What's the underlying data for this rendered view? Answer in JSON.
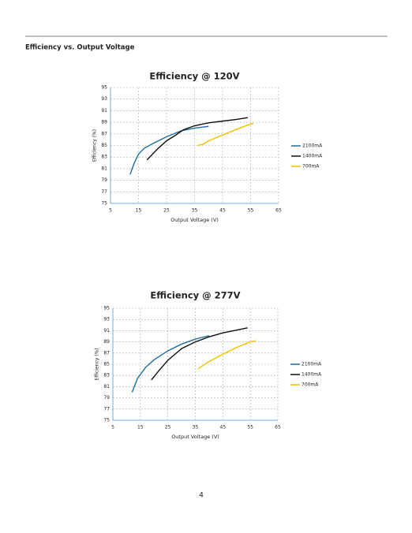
{
  "section_title": "Efficiency vs. Output Voltage",
  "page_number": "4",
  "chart_data": [
    {
      "type": "line",
      "title": "Efficiency @ 120V",
      "x_label": "Output Voltage (V)",
      "y_label": "Efficiency (%)",
      "xlim": [
        5,
        65
      ],
      "xticks": [
        5,
        15,
        25,
        35,
        45,
        55,
        65
      ],
      "ylim": [
        75,
        95
      ],
      "yticks": [
        75,
        77,
        79,
        81,
        83,
        85,
        87,
        89,
        91,
        93,
        95
      ],
      "grid": true,
      "legend": "right",
      "series": [
        {
          "name": "2100mA",
          "color": "#1f6e9c",
          "x": [
            12,
            13.5,
            15,
            17,
            20,
            25,
            30,
            35,
            40
          ],
          "values": [
            80,
            82,
            83.5,
            84.5,
            85.3,
            86.5,
            87.5,
            88,
            88.3
          ]
        },
        {
          "name": "1400mA",
          "color": "#111111",
          "x": [
            18,
            20,
            22,
            25,
            28,
            31,
            35,
            40,
            45,
            50,
            54
          ],
          "values": [
            82.5,
            83.5,
            84.5,
            85.8,
            86.7,
            87.7,
            88.4,
            88.9,
            89.2,
            89.5,
            89.8
          ]
        },
        {
          "name": "700mA",
          "color": "#f2c200",
          "x": [
            36,
            38,
            40,
            45,
            50,
            55,
            56
          ],
          "values": [
            85,
            85.2,
            85.8,
            86.8,
            87.8,
            88.7,
            88.8
          ]
        }
      ]
    },
    {
      "type": "line",
      "title": "Efficiency @ 277V",
      "x_label": "Output Voltage (V)",
      "y_label": "Efficiency (%)",
      "xlim": [
        5,
        65
      ],
      "xticks": [
        5,
        15,
        25,
        35,
        45,
        55,
        65
      ],
      "ylim": [
        75,
        95
      ],
      "yticks": [
        75,
        77,
        79,
        81,
        83,
        85,
        87,
        89,
        91,
        93,
        95
      ],
      "grid": true,
      "legend": "right",
      "series": [
        {
          "name": "2100mA",
          "color": "#1f6e9c",
          "x": [
            12,
            14,
            17,
            20,
            25,
            30,
            35,
            40
          ],
          "values": [
            80,
            82.5,
            84.5,
            85.8,
            87.4,
            88.6,
            89.5,
            90.1
          ]
        },
        {
          "name": "1400mA",
          "color": "#111111",
          "x": [
            19,
            22,
            25,
            30,
            35,
            40,
            45,
            50,
            54
          ],
          "values": [
            82.2,
            84,
            85.7,
            87.8,
            89,
            89.9,
            90.6,
            91.1,
            91.5
          ]
        },
        {
          "name": "700mA",
          "color": "#f2c200",
          "x": [
            36,
            40,
            45,
            50,
            55,
            57
          ],
          "values": [
            84.2,
            85.5,
            86.8,
            88,
            89,
            89.2
          ]
        }
      ]
    }
  ]
}
